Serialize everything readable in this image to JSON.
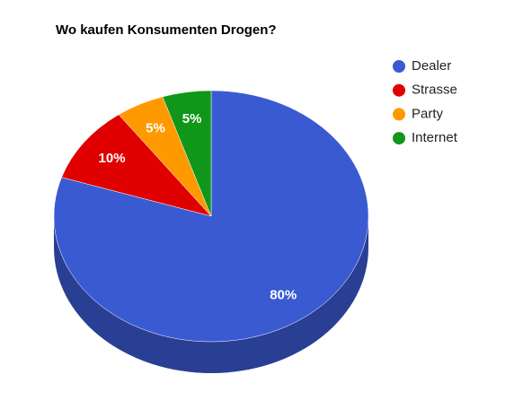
{
  "chart_data": {
    "type": "pie",
    "title": "Wo kaufen Konsumenten Drogen?",
    "categories": [
      "Dealer",
      "Strasse",
      "Party",
      "Internet"
    ],
    "values": [
      80,
      10,
      5,
      5
    ],
    "value_labels": [
      "80%",
      "10%",
      "5%",
      "5%"
    ],
    "colors": [
      "#3a5ad2",
      "#e00000",
      "#ff9900",
      "#109618"
    ],
    "legend": "right",
    "three_d": true
  }
}
